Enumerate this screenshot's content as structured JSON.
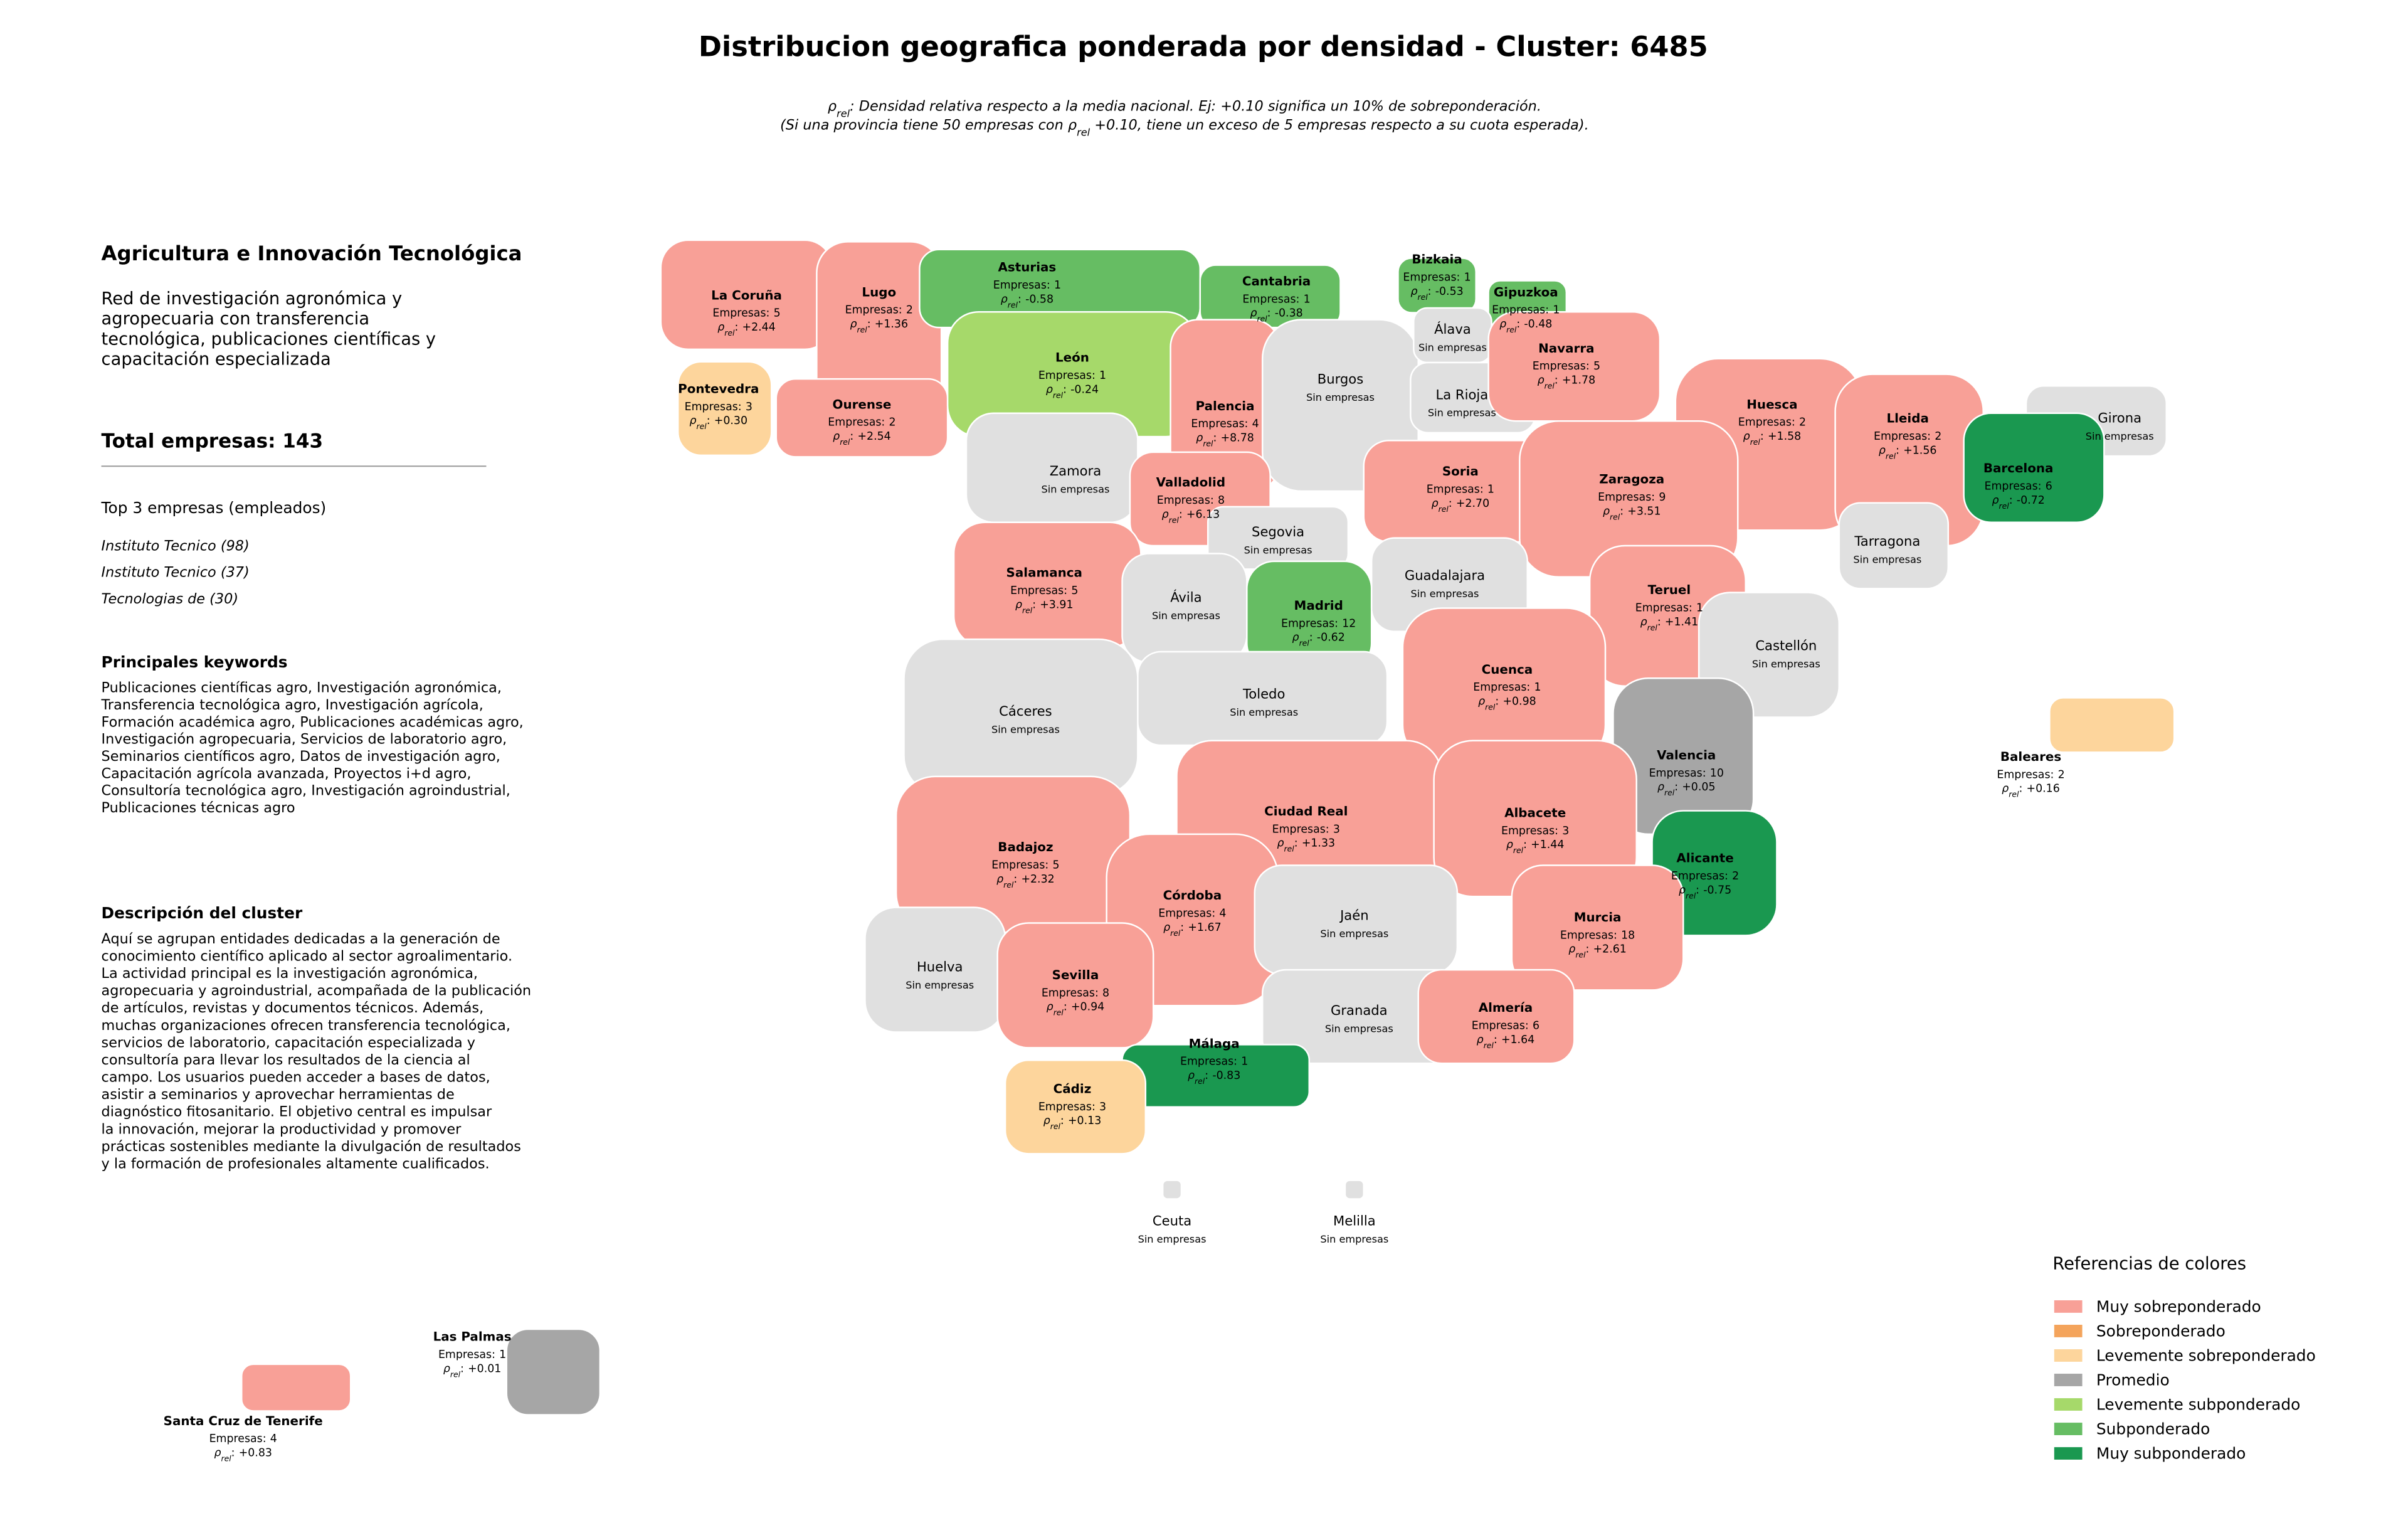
{
  "header": {
    "title": "Distribucion geografica ponderada por densidad - Cluster: 6485",
    "subtitle": [
      [
        {
          "t": "ρ"
        },
        {
          "t": "rel",
          "sub": true
        },
        {
          "t": ": Densidad relativa respecto a la media nacional. Ej: +0.10 significa un 10% de sobreponderación."
        }
      ],
      [
        {
          "t": "(Si una provincia tiene 50 empresas con "
        },
        {
          "t": "ρ"
        },
        {
          "t": "rel",
          "sub": true
        },
        {
          "t": " +0.10, tiene un exceso de 5 empresas respecto a su cuota esperada)."
        }
      ]
    ]
  },
  "panel": {
    "title": "Agricultura e Innovación Tecnológica",
    "summary": [
      "Red de investigación agronómica y",
      "agropecuaria con transferencia",
      "tecnológica, publicaciones científicas y",
      "capacitación especializada"
    ],
    "total": "Total empresas: 143",
    "top_heading": "Top 3 empresas (empleados)",
    "top": [
      "Instituto Tecnico (98)",
      "Instituto Tecnico (37)",
      "Tecnologias de (30)"
    ],
    "keywords_heading": "Principales keywords",
    "keywords": [
      "Publicaciones científicas agro, Investigación agronómica,",
      "Transferencia tecnológica agro, Investigación agrícola,",
      "Formación académica agro, Publicaciones académicas agro,",
      "Investigación agropecuaria, Servicios de laboratorio agro,",
      "Seminarios científicos agro, Datos de investigación agro,",
      "Capacitación agrícola avanzada, Proyectos i+d agro,",
      "Consultoría tecnológica agro, Investigación agroindustrial,",
      "Publicaciones técnicas agro"
    ],
    "description_heading": "Descripción del cluster",
    "description": [
      "Aquí se agrupan entidades dedicadas a la generación de",
      "conocimiento científico aplicado al sector agroalimentario.",
      "La actividad principal es la investigación agronómica,",
      "agropecuaria y agroindustrial, acompañada de la publicación",
      "de artículos, revistas y documentos técnicos. Además,",
      "muchas organizaciones ofrecen transferencia tecnológica,",
      "servicios de laboratorio, capacitación especializada y",
      "consultoría para llevar los resultados de la ciencia al",
      "campo. Los usuarios pueden acceder a bases de datos,",
      "asistir a seminarios y aprovechar herramientas de",
      "diagnóstico fitosanitario. El objetivo central es impulsar",
      "la innovación, mejorar la productividad y promover",
      "prácticas sostenibles mediante la divulgación de resultados",
      "y la formación de profesionales altamente cualificados."
    ]
  },
  "labels": {
    "count": "Empresas:",
    "rho": "ρ",
    "rho_sub": "rel",
    "rho_sep": ":",
    "empty": "Sin empresas"
  },
  "empty_color": "#e0e0e0",
  "legend": {
    "title": "Referencias de colores",
    "items": [
      {
        "name": "Muy sobreponderado",
        "color": "#f8a097"
      },
      {
        "name": "Sobreponderado",
        "color": "#f4a45c"
      },
      {
        "name": "Levemente sobreponderado",
        "color": "#fdd59c"
      },
      {
        "name": "Promedio",
        "color": "#a6a6a6"
      },
      {
        "name": "Levemente subponderado",
        "color": "#a6d96a"
      },
      {
        "name": "Subponderado",
        "color": "#66bd63"
      },
      {
        "name": "Muy subponderado",
        "color": "#1a9850"
      }
    ]
  },
  "provinces": [
    {
      "name": "La Coruña",
      "empresas": 5,
      "rho": "+2.44",
      "level": 0
    },
    {
      "name": "Lugo",
      "empresas": 2,
      "rho": "+1.36",
      "level": 0
    },
    {
      "name": "Asturias",
      "empresas": 1,
      "rho": "-0.58",
      "level": 5
    },
    {
      "name": "Cantabria",
      "empresas": 1,
      "rho": "-0.38",
      "level": 5
    },
    {
      "name": "Bizkaia",
      "empresas": 1,
      "rho": "-0.53",
      "level": 5
    },
    {
      "name": "Gipuzkoa",
      "empresas": 1,
      "rho": "-0.48",
      "level": 5
    },
    {
      "name": "Pontevedra",
      "empresas": 3,
      "rho": "+0.30",
      "level": 2
    },
    {
      "name": "Ourense",
      "empresas": 2,
      "rho": "+2.54",
      "level": 0
    },
    {
      "name": "León",
      "empresas": 1,
      "rho": "-0.24",
      "level": 4
    },
    {
      "name": "Palencia",
      "empresas": 4,
      "rho": "+8.78",
      "level": 0
    },
    {
      "name": "Burgos"
    },
    {
      "name": "Álava"
    },
    {
      "name": "La Rioja"
    },
    {
      "name": "Navarra",
      "empresas": 5,
      "rho": "+1.78",
      "level": 0
    },
    {
      "name": "Huesca",
      "empresas": 2,
      "rho": "+1.58",
      "level": 0
    },
    {
      "name": "Lleida",
      "empresas": 2,
      "rho": "+1.56",
      "level": 0
    },
    {
      "name": "Girona"
    },
    {
      "name": "Barcelona",
      "empresas": 6,
      "rho": "-0.72",
      "level": 6
    },
    {
      "name": "Zamora"
    },
    {
      "name": "Valladolid",
      "empresas": 8,
      "rho": "+6.13",
      "level": 0
    },
    {
      "name": "Soria",
      "empresas": 1,
      "rho": "+2.70",
      "level": 0
    },
    {
      "name": "Zaragoza",
      "empresas": 9,
      "rho": "+3.51",
      "level": 0
    },
    {
      "name": "Tarragona"
    },
    {
      "name": "Segovia"
    },
    {
      "name": "Salamanca",
      "empresas": 5,
      "rho": "+3.91",
      "level": 0
    },
    {
      "name": "Ávila"
    },
    {
      "name": "Madrid",
      "empresas": 12,
      "rho": "-0.62",
      "level": 5
    },
    {
      "name": "Guadalajara"
    },
    {
      "name": "Teruel",
      "empresas": 1,
      "rho": "+1.41",
      "level": 0
    },
    {
      "name": "Castellón"
    },
    {
      "name": "Cáceres"
    },
    {
      "name": "Toledo"
    },
    {
      "name": "Cuenca",
      "empresas": 1,
      "rho": "+0.98",
      "level": 0
    },
    {
      "name": "Valencia",
      "empresas": 10,
      "rho": "+0.05",
      "level": 3
    },
    {
      "name": "Baleares",
      "empresas": 2,
      "rho": "+0.16",
      "level": 2
    },
    {
      "name": "Ciudad Real",
      "empresas": 3,
      "rho": "+1.33",
      "level": 0
    },
    {
      "name": "Albacete",
      "empresas": 3,
      "rho": "+1.44",
      "level": 0
    },
    {
      "name": "Badajoz",
      "empresas": 5,
      "rho": "+2.32",
      "level": 0
    },
    {
      "name": "Alicante",
      "empresas": 2,
      "rho": "-0.75",
      "level": 6
    },
    {
      "name": "Córdoba",
      "empresas": 4,
      "rho": "+1.67",
      "level": 0
    },
    {
      "name": "Jaén"
    },
    {
      "name": "Murcia",
      "empresas": 18,
      "rho": "+2.61",
      "level": 0
    },
    {
      "name": "Huelva"
    },
    {
      "name": "Sevilla",
      "empresas": 8,
      "rho": "+0.94",
      "level": 0
    },
    {
      "name": "Granada"
    },
    {
      "name": "Almería",
      "empresas": 6,
      "rho": "+1.64",
      "level": 0
    },
    {
      "name": "Málaga",
      "empresas": 1,
      "rho": "-0.83",
      "level": 6
    },
    {
      "name": "Cádiz",
      "empresas": 3,
      "rho": "+0.13",
      "level": 2
    },
    {
      "name": "Ceuta"
    },
    {
      "name": "Melilla"
    },
    {
      "name": "Las Palmas",
      "empresas": 1,
      "rho": "+0.01",
      "level": 3
    },
    {
      "name": "Santa Cruz de Tenerife",
      "empresas": 4,
      "rho": "+0.83",
      "level": 0
    }
  ]
}
